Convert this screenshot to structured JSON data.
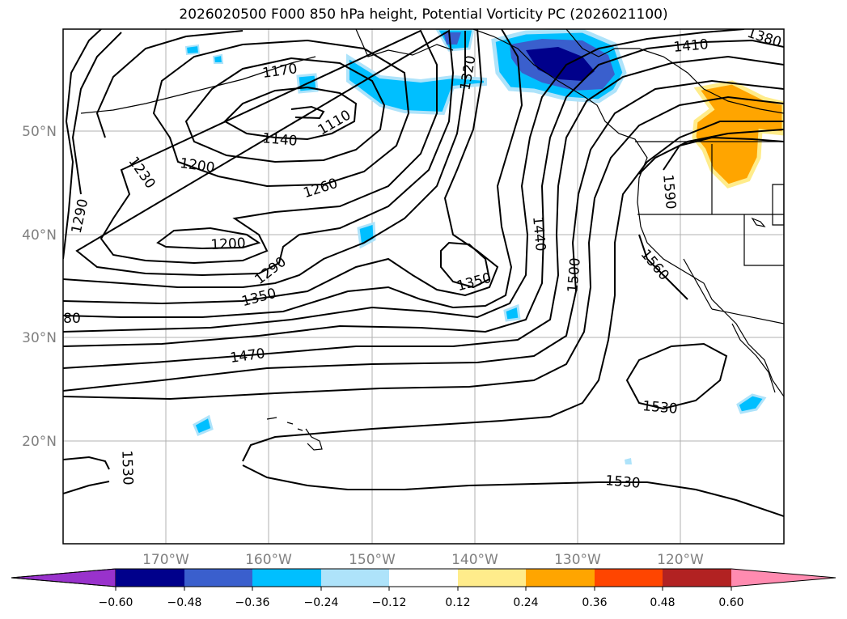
{
  "title": "2026020500 F000 850 hPa height, Potential Vorticity PC (2026021100)",
  "lat_labels": [
    "50°N",
    "40°N",
    "30°N",
    "20°N"
  ],
  "lon_labels": [
    "170°W",
    "160°W",
    "150°W",
    "140°W",
    "130°W",
    "120°W"
  ],
  "contour_labels": [
    "1170",
    "1320",
    "1410",
    "1380",
    "1110",
    "1140",
    "1200",
    "1230",
    "1260",
    "1290",
    "1200",
    "1440",
    "1590",
    "1290",
    "1350",
    "1350",
    "1500",
    "1560",
    "80",
    "1470",
    "1530",
    "1530",
    "1530"
  ],
  "colorbar": {
    "ticks": [
      "−0.60",
      "−0.48",
      "−0.36",
      "−0.24",
      "−0.12",
      "0.12",
      "0.24",
      "0.36",
      "0.48",
      "0.60"
    ],
    "colors": [
      "#9932cc",
      "#00008b",
      "#3a5fcd",
      "#00bfff",
      "#aee3fa",
      "#ffffff",
      "#ffec8b",
      "#ffa500",
      "#ff4500",
      "#b22222",
      "#ff8bb0"
    ]
  }
}
